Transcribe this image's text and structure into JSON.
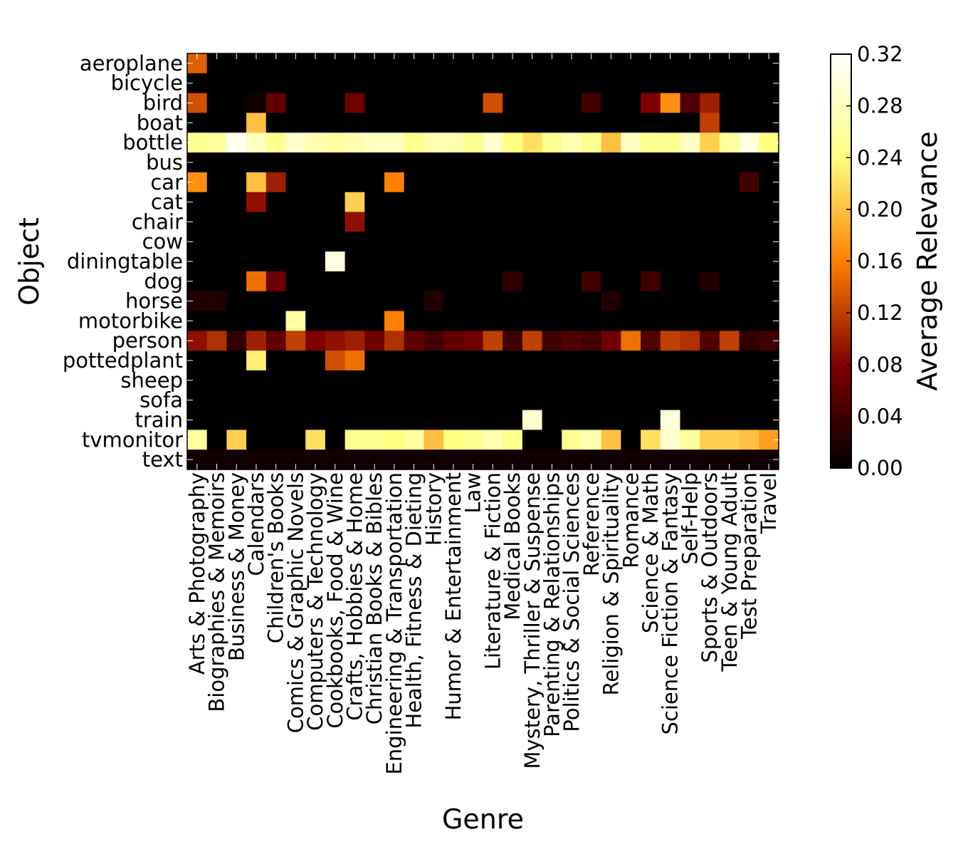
{
  "chart_data": {
    "type": "heatmap",
    "title": "",
    "xlabel": "Genre",
    "ylabel": "Object",
    "colorbar_label": "Average Relevance",
    "colormap": "afmhot",
    "vmin": 0.0,
    "vmax": 0.32,
    "colorbar_ticks": [
      "0.00",
      "0.04",
      "0.08",
      "0.12",
      "0.16",
      "0.20",
      "0.24",
      "0.28",
      "0.32"
    ],
    "columns": [
      "Arts & Photography",
      "Biographies & Memoirs",
      "Business & Money",
      "Calendars",
      "Children's Books",
      "Comics & Graphic Novels",
      "Computers & Technology",
      "Cookbooks, Food & Wine",
      "Crafts, Hobbies & Home",
      "Christian Books & Bibles",
      "Engineering & Transportation",
      "Health, Fitness & Dieting",
      "History",
      "Humor & Entertainment",
      "Law",
      "Literature & Fiction",
      "Medical Books",
      "Mystery, Thriller & Suspense",
      "Parenting & Relationships",
      "Politics & Social Sciences",
      "Reference",
      "Religion & Spirituality",
      "Romance",
      "Science & Math",
      "Science Fiction & Fantasy",
      "Self-Help",
      "Sports & Outdoors",
      "Teen & Young Adult",
      "Test Preparation",
      "Travel"
    ],
    "rows": [
      "aeroplane",
      "bicycle",
      "bird",
      "boat",
      "bottle",
      "bus",
      "car",
      "cat",
      "chair",
      "cow",
      "diningtable",
      "dog",
      "horse",
      "motorbike",
      "person",
      "pottedplant",
      "sheep",
      "sofa",
      "train",
      "tvmonitor",
      "text"
    ],
    "values": [
      [
        0.14,
        0,
        0,
        0,
        0,
        0,
        0,
        0,
        0,
        0,
        0,
        0,
        0,
        0,
        0,
        0,
        0,
        0,
        0,
        0,
        0,
        0,
        0,
        0,
        0,
        0,
        0,
        0,
        0,
        0
      ],
      [
        0,
        0,
        0,
        0,
        0,
        0,
        0,
        0,
        0,
        0,
        0,
        0,
        0,
        0,
        0,
        0,
        0,
        0,
        0,
        0,
        0,
        0,
        0,
        0,
        0,
        0,
        0,
        0,
        0,
        0
      ],
      [
        0.13,
        0,
        0,
        0.01,
        0.06,
        0,
        0,
        0,
        0.07,
        0,
        0,
        0,
        0,
        0,
        0,
        0.13,
        0,
        0,
        0,
        0,
        0.04,
        0,
        0,
        0.08,
        0.17,
        0.05,
        0.1,
        0,
        0,
        0
      ],
      [
        0,
        0,
        0,
        0.2,
        0,
        0,
        0,
        0,
        0,
        0,
        0,
        0,
        0,
        0,
        0,
        0,
        0,
        0,
        0,
        0,
        0,
        0,
        0,
        0,
        0,
        0,
        0.12,
        0,
        0,
        0
      ],
      [
        0.25,
        0.26,
        0.31,
        0.28,
        0.25,
        0.29,
        0.27,
        0.26,
        0.27,
        0.28,
        0.28,
        0.25,
        0.27,
        0.27,
        0.25,
        0.29,
        0.24,
        0.22,
        0.25,
        0.27,
        0.25,
        0.2,
        0.28,
        0.25,
        0.25,
        0.28,
        0.21,
        0.26,
        0.3,
        0.24
      ],
      [
        0,
        0,
        0,
        0,
        0,
        0,
        0,
        0,
        0,
        0,
        0,
        0,
        0,
        0,
        0,
        0,
        0,
        0,
        0,
        0,
        0,
        0,
        0,
        0,
        0,
        0,
        0,
        0,
        0,
        0
      ],
      [
        0.17,
        0,
        0,
        0.2,
        0.1,
        0,
        0,
        0,
        0,
        0,
        0.16,
        0,
        0,
        0,
        0,
        0,
        0,
        0,
        0,
        0,
        0,
        0,
        0,
        0,
        0,
        0,
        0,
        0,
        0.04,
        0
      ],
      [
        0,
        0,
        0,
        0.09,
        0,
        0,
        0,
        0,
        0.21,
        0,
        0,
        0,
        0,
        0,
        0,
        0,
        0,
        0,
        0,
        0,
        0,
        0,
        0,
        0,
        0,
        0,
        0,
        0,
        0,
        0
      ],
      [
        0,
        0,
        0,
        0,
        0,
        0,
        0,
        0,
        0.09,
        0,
        0,
        0,
        0,
        0,
        0,
        0,
        0,
        0,
        0,
        0,
        0,
        0,
        0,
        0,
        0,
        0,
        0,
        0,
        0,
        0
      ],
      [
        0,
        0,
        0,
        0,
        0,
        0,
        0,
        0,
        0,
        0,
        0,
        0,
        0,
        0,
        0,
        0,
        0,
        0,
        0,
        0,
        0,
        0,
        0,
        0,
        0,
        0,
        0,
        0,
        0,
        0
      ],
      [
        0,
        0,
        0,
        0,
        0,
        0,
        0,
        0.3,
        0,
        0,
        0,
        0,
        0,
        0,
        0,
        0,
        0,
        0,
        0,
        0,
        0,
        0,
        0,
        0,
        0,
        0,
        0,
        0,
        0,
        0
      ],
      [
        0,
        0,
        0,
        0.15,
        0.07,
        0,
        0,
        0,
        0,
        0,
        0,
        0,
        0,
        0,
        0,
        0,
        0.03,
        0,
        0,
        0,
        0.04,
        0,
        0,
        0.04,
        0,
        0,
        0.02,
        0,
        0,
        0
      ],
      [
        0.02,
        0.02,
        0,
        0,
        0,
        0,
        0,
        0,
        0,
        0,
        0,
        0,
        0.02,
        0,
        0,
        0,
        0,
        0,
        0,
        0,
        0,
        0.02,
        0,
        0,
        0,
        0,
        0,
        0,
        0,
        0
      ],
      [
        0,
        0,
        0,
        0,
        0,
        0.26,
        0,
        0,
        0,
        0,
        0.16,
        0,
        0,
        0,
        0,
        0,
        0,
        0,
        0,
        0,
        0,
        0,
        0,
        0,
        0,
        0,
        0,
        0,
        0,
        0
      ],
      [
        0.09,
        0.11,
        0.03,
        0.1,
        0.06,
        0.12,
        0.08,
        0.09,
        0.1,
        0.07,
        0.11,
        0.06,
        0.04,
        0.06,
        0.07,
        0.12,
        0.04,
        0.12,
        0.04,
        0.05,
        0.04,
        0.07,
        0.15,
        0.05,
        0.12,
        0.11,
        0.05,
        0.12,
        0.03,
        0.04
      ],
      [
        0,
        0,
        0,
        0.23,
        0,
        0,
        0,
        0.13,
        0.15,
        0,
        0,
        0,
        0,
        0,
        0,
        0,
        0,
        0,
        0,
        0,
        0,
        0,
        0,
        0,
        0,
        0,
        0,
        0,
        0,
        0
      ],
      [
        0,
        0,
        0,
        0,
        0,
        0,
        0,
        0,
        0,
        0,
        0,
        0,
        0,
        0,
        0,
        0,
        0,
        0,
        0,
        0,
        0,
        0,
        0,
        0,
        0,
        0,
        0,
        0,
        0,
        0
      ],
      [
        0,
        0,
        0,
        0,
        0,
        0,
        0,
        0,
        0,
        0,
        0,
        0,
        0,
        0,
        0,
        0,
        0,
        0,
        0,
        0,
        0,
        0,
        0,
        0,
        0,
        0,
        0,
        0,
        0,
        0
      ],
      [
        0,
        0,
        0,
        0,
        0,
        0,
        0,
        0,
        0,
        0,
        0,
        0,
        0,
        0,
        0,
        0,
        0,
        0.29,
        0,
        0,
        0,
        0,
        0,
        0,
        0.3,
        0,
        0,
        0,
        0,
        0
      ],
      [
        0.26,
        0,
        0.21,
        0,
        0,
        0,
        0.22,
        0,
        0.25,
        0.25,
        0.24,
        0.26,
        0.2,
        0.24,
        0.25,
        0.27,
        0.25,
        0,
        0,
        0.25,
        0.27,
        0.2,
        0,
        0.22,
        0.29,
        0.26,
        0.21,
        0.21,
        0.2,
        0.18
      ],
      [
        0.01,
        0.01,
        0.01,
        0.01,
        0.01,
        0.01,
        0.01,
        0.01,
        0.01,
        0.01,
        0.01,
        0.01,
        0.01,
        0.01,
        0.01,
        0.01,
        0.01,
        0.01,
        0.01,
        0.01,
        0.01,
        0.01,
        0.01,
        0.01,
        0.01,
        0.01,
        0.01,
        0.01,
        0.01,
        0.01
      ]
    ]
  }
}
